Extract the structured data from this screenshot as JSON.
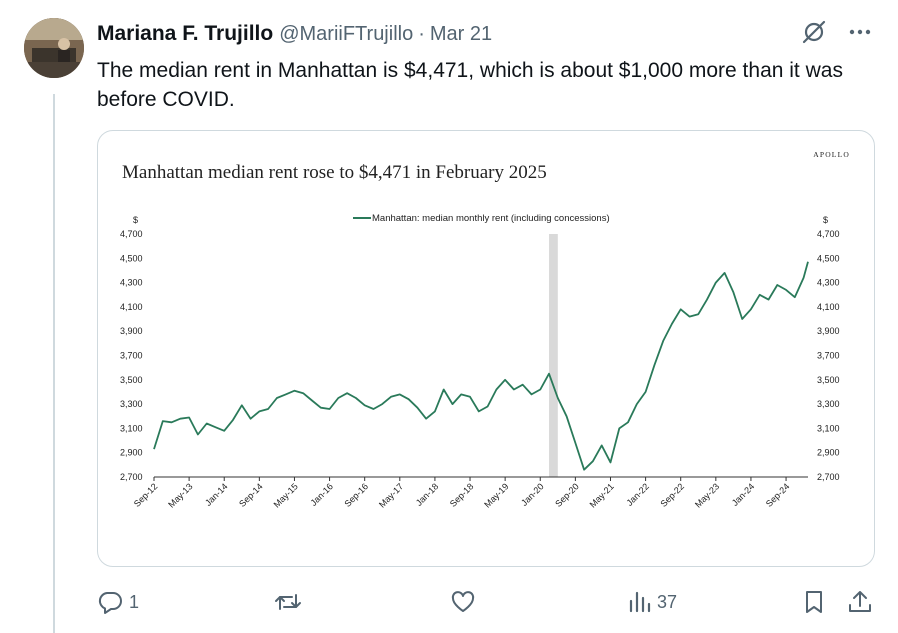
{
  "tweet": {
    "author_name": "Mariana F. Trujillo",
    "handle": "@MariiFTrujillo",
    "separator": "·",
    "date": "Mar 21",
    "text": "The median rent in Manhattan is $4,471, which is about $1,000 more than it was before COVID."
  },
  "actions": {
    "replies": "1",
    "retweets": "",
    "likes": "",
    "views": "37"
  },
  "icons": {
    "grok": "grok-icon",
    "more": "more-icon",
    "reply": "reply-icon",
    "retweet": "retweet-icon",
    "like": "heart-icon",
    "views": "views-icon",
    "bookmark": "bookmark-icon",
    "share": "share-icon"
  },
  "colors": {
    "line": "#2a7a5a",
    "recession": "#d9d9d9",
    "muted": "#536471"
  },
  "chart_data": {
    "type": "line",
    "title": "Manhattan median rent rose to $4,471 in February 2025",
    "brand": "APOLLO",
    "legend": "Manhattan: median monthly rent (including concessions)",
    "legend_position": "top-center",
    "ylabel_left": "$",
    "ylabel_right": "$",
    "ylim": [
      2700,
      4700
    ],
    "yticks": [
      "4,700",
      "4,500",
      "4,300",
      "4,100",
      "3,900",
      "3,700",
      "3,500",
      "3,300",
      "3,100",
      "2,900",
      "2,700"
    ],
    "xticks": [
      "Sep-12",
      "May-13",
      "Jan-14",
      "Sep-14",
      "May-15",
      "Jan-16",
      "Sep-16",
      "May-17",
      "Jan-18",
      "Sep-18",
      "May-19",
      "Jan-20",
      "Sep-20",
      "May-21",
      "Jan-22",
      "Sep-22",
      "May-23",
      "Jan-24",
      "Sep-24"
    ],
    "grid": false,
    "shaded_period": {
      "start": "2020-03",
      "end": "2020-05"
    },
    "series": [
      {
        "name": "Manhattan: median monthly rent (including concessions)",
        "x": [
          "2012-09",
          "2012-11",
          "2013-01",
          "2013-03",
          "2013-05",
          "2013-07",
          "2013-09",
          "2013-11",
          "2014-01",
          "2014-03",
          "2014-05",
          "2014-07",
          "2014-09",
          "2014-11",
          "2015-01",
          "2015-03",
          "2015-05",
          "2015-07",
          "2015-09",
          "2015-11",
          "2016-01",
          "2016-03",
          "2016-05",
          "2016-07",
          "2016-09",
          "2016-11",
          "2017-01",
          "2017-03",
          "2017-05",
          "2017-07",
          "2017-09",
          "2017-11",
          "2018-01",
          "2018-03",
          "2018-05",
          "2018-07",
          "2018-09",
          "2018-11",
          "2019-01",
          "2019-03",
          "2019-05",
          "2019-07",
          "2019-09",
          "2019-11",
          "2020-01",
          "2020-03",
          "2020-05",
          "2020-07",
          "2020-09",
          "2020-11",
          "2021-01",
          "2021-03",
          "2021-05",
          "2021-07",
          "2021-09",
          "2021-11",
          "2022-01",
          "2022-03",
          "2022-05",
          "2022-07",
          "2022-09",
          "2022-11",
          "2023-01",
          "2023-03",
          "2023-05",
          "2023-07",
          "2023-09",
          "2023-11",
          "2024-01",
          "2024-03",
          "2024-05",
          "2024-07",
          "2024-09",
          "2024-11",
          "2025-01",
          "2025-02"
        ],
        "values": [
          2930,
          3160,
          3150,
          3180,
          3190,
          3050,
          3140,
          3110,
          3080,
          3170,
          3290,
          3180,
          3240,
          3260,
          3350,
          3380,
          3410,
          3390,
          3330,
          3270,
          3260,
          3350,
          3390,
          3350,
          3290,
          3260,
          3300,
          3360,
          3380,
          3340,
          3270,
          3180,
          3240,
          3420,
          3300,
          3380,
          3360,
          3240,
          3280,
          3420,
          3500,
          3420,
          3460,
          3380,
          3420,
          3550,
          3350,
          3200,
          2980,
          2760,
          2830,
          2960,
          2820,
          3100,
          3150,
          3300,
          3400,
          3620,
          3820,
          3960,
          4080,
          4020,
          4040,
          4160,
          4300,
          4380,
          4220,
          4000,
          4080,
          4200,
          4160,
          4280,
          4240,
          4180,
          4340,
          4471
        ]
      }
    ]
  }
}
